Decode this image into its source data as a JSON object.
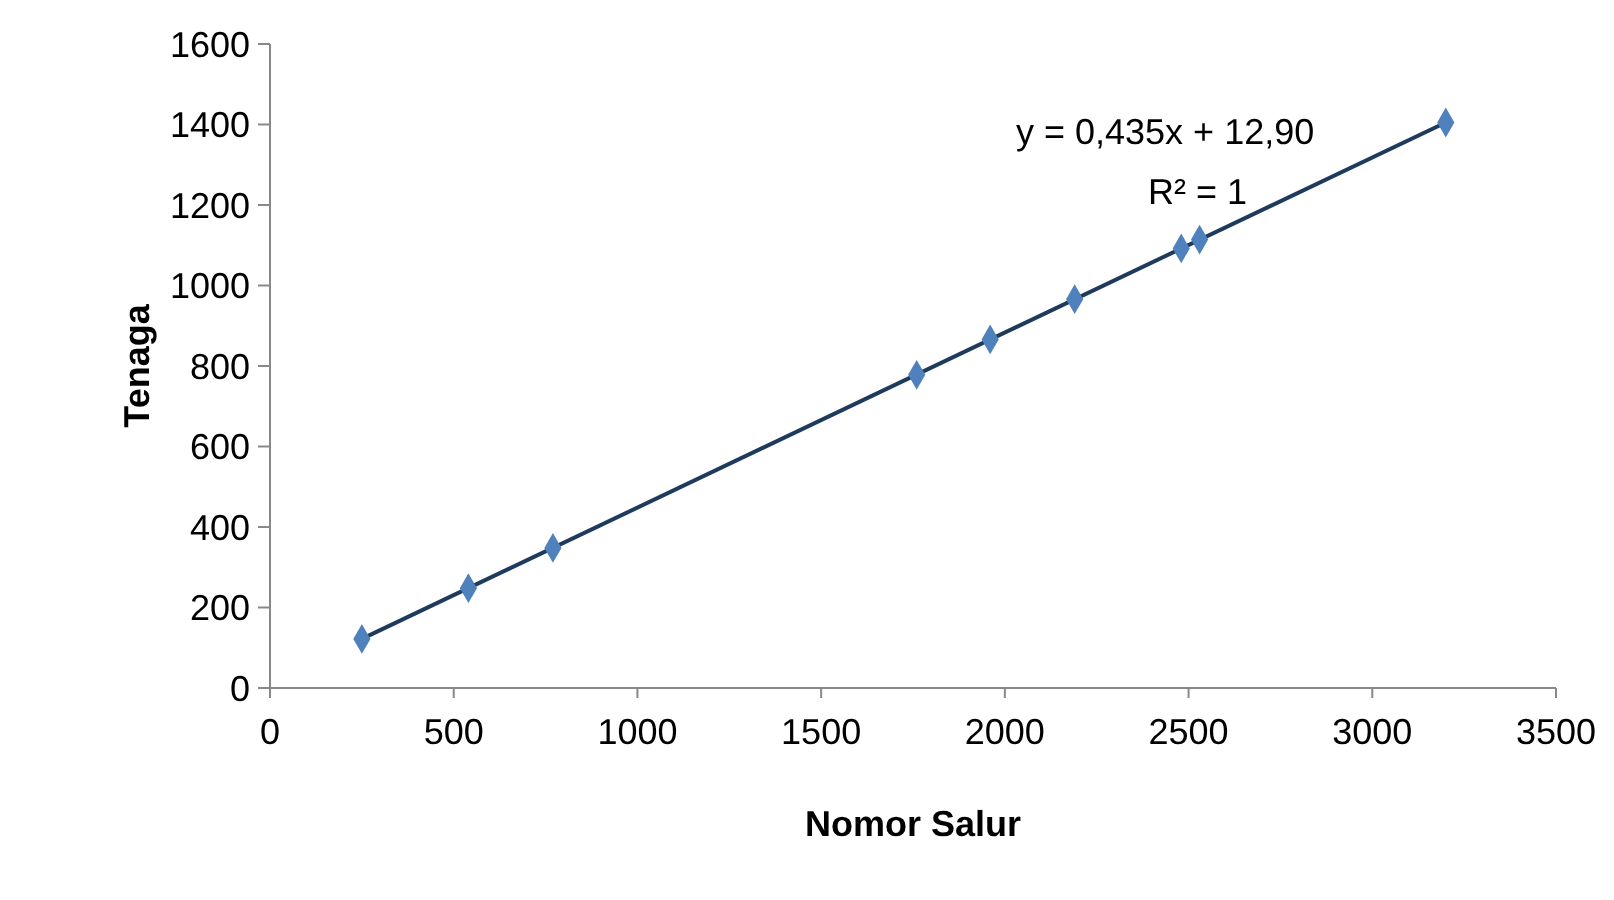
{
  "chart_data": {
    "type": "scatter",
    "xlabel": "Nomor Salur",
    "ylabel": "Tenaga",
    "xlim": [
      0,
      3500
    ],
    "xticks": [
      0,
      500,
      1000,
      1500,
      2000,
      2500,
      3000,
      3500
    ],
    "ylim": [
      0,
      1600
    ],
    "yticks": [
      0,
      200,
      400,
      600,
      800,
      1000,
      1200,
      1400,
      1600
    ],
    "grid": false,
    "legend": false,
    "marker": "diamond",
    "series": [
      {
        "type": "scatter",
        "color": "#4f81bd",
        "x": [
          250,
          540,
          770,
          1760,
          1960,
          2190,
          2480,
          2530,
          3200
        ],
        "values": [
          122,
          248,
          348,
          778,
          866,
          966,
          1092,
          1114,
          1405
        ]
      },
      {
        "type": "line",
        "color": "#1f3b5c",
        "x": [
          250,
          3200
        ],
        "values": [
          122,
          1405
        ],
        "marker": "none",
        "line_style": "solid"
      }
    ],
    "annotations": [
      "y = 0,435x + 12,90",
      "R² = 1"
    ]
  }
}
